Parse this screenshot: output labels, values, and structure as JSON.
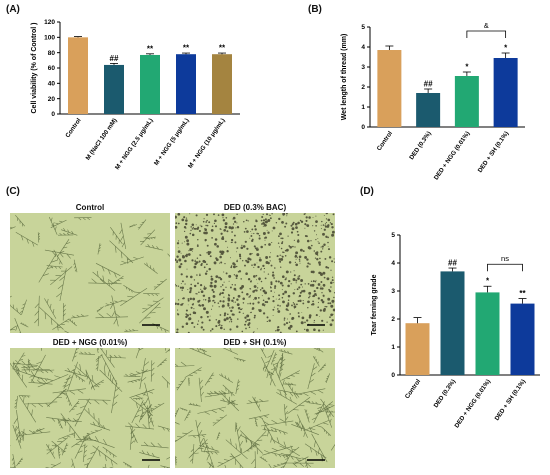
{
  "panels": {
    "A": "(A)",
    "B": "(B)",
    "C": "(C)",
    "D": "(D)"
  },
  "colors": {
    "control": "#d9a05b",
    "ded": "#1b5a6e",
    "ngg": "#22a873",
    "sh": "#0d3a9b",
    "ngg10": "#a48440",
    "micro_bg": "#c8d49a",
    "micro_line": "#4a5a30"
  },
  "chart_data": [
    {
      "id": "A",
      "type": "bar",
      "ylabel": "Cell viability (% of Control )",
      "ylim": [
        0,
        120
      ],
      "yticks": [
        0,
        20,
        40,
        60,
        80,
        100,
        120
      ],
      "categories": [
        "Control",
        "M (NaCl 100 mM)",
        "M + NGG (2.5 μg/mL)",
        "M + NGG (5 μg/mL)",
        "M + NGG (10 μg/mL)"
      ],
      "values": [
        100,
        64,
        77,
        78,
        78
      ],
      "errors": [
        1,
        2,
        1.5,
        1.5,
        1.5
      ],
      "colors": [
        "#d9a05b",
        "#1b5a6e",
        "#22a873",
        "#0d3a9b",
        "#a48440"
      ],
      "annotations": [
        "",
        "##",
        "**",
        "**",
        "**"
      ]
    },
    {
      "id": "B",
      "type": "bar",
      "ylabel": "Wet length of thread  (mm)",
      "ylim": [
        0,
        5
      ],
      "yticks": [
        0,
        1,
        2,
        3,
        4,
        5
      ],
      "categories": [
        "Control",
        "DED (0.3%)",
        "DED + NGG (0.01%)",
        "DED + SH (0.1%)"
      ],
      "values": [
        3.85,
        1.7,
        2.55,
        3.45
      ],
      "errors": [
        0.2,
        0.2,
        0.2,
        0.25
      ],
      "colors": [
        "#d9a05b",
        "#1b5a6e",
        "#22a873",
        "#0d3a9b"
      ],
      "annotations": [
        "",
        "##",
        "*",
        "*"
      ],
      "bracket": {
        "from": 2,
        "to": 3,
        "label": "&"
      }
    },
    {
      "id": "D",
      "type": "bar",
      "ylabel": "Tear ferning grade",
      "ylim": [
        0,
        5
      ],
      "yticks": [
        0,
        1,
        2,
        3,
        4,
        5
      ],
      "categories": [
        "Control",
        "DED (0.3%)",
        "DED + NGG (0.01%)",
        "DED + SH (0.1%)"
      ],
      "values": [
        1.85,
        3.7,
        2.95,
        2.55
      ],
      "errors": [
        0.2,
        0.12,
        0.22,
        0.18
      ],
      "colors": [
        "#d9a05b",
        "#1b5a6e",
        "#22a873",
        "#0d3a9b"
      ],
      "annotations": [
        "",
        "##",
        "*",
        "**"
      ],
      "bracket": {
        "from": 2,
        "to": 3,
        "label": "ns"
      }
    }
  ],
  "micrographs": [
    {
      "title": "Control",
      "style": "ferns"
    },
    {
      "title": "DED (0.3% BAC)",
      "style": "dots"
    },
    {
      "title": "DED + NGG (0.01%)",
      "style": "ferns"
    },
    {
      "title": "DED + SH (0.1%)",
      "style": "ferns"
    }
  ]
}
